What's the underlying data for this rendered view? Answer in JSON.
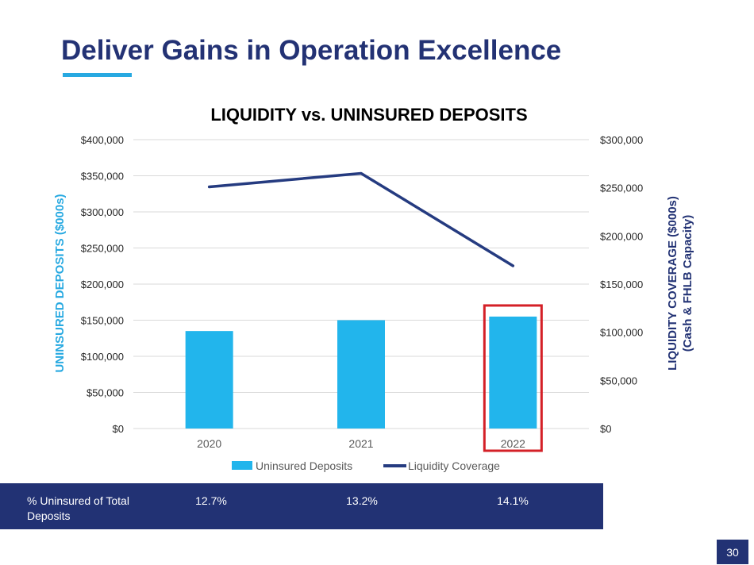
{
  "slide": {
    "title": "Deliver Gains in Operation Excellence",
    "page_number": "30"
  },
  "colors": {
    "title": "#233274",
    "accent": "#27a9e1",
    "bar": "#22b5ec",
    "line": "#253b80",
    "highlight": "#d42027",
    "band": "#223274"
  },
  "chart_data": {
    "type": "bar+line",
    "title": "LIQUIDITY vs. UNINSURED DEPOSITS",
    "categories": [
      "2020",
      "2021",
      "2022"
    ],
    "series": [
      {
        "name": "Uninsured Deposits",
        "type": "bar",
        "axis": "left",
        "values": [
          135000,
          150000,
          155000
        ]
      },
      {
        "name": "Liquidity Coverage",
        "type": "line",
        "axis": "right",
        "values": [
          251000,
          265000,
          169000
        ]
      }
    ],
    "y_left": {
      "label": "UNINSURED DEPOSITS ($000s)",
      "ylim": [
        0,
        400000
      ],
      "ticks": [
        "$0",
        "$50,000",
        "$100,000",
        "$150,000",
        "$200,000",
        "$250,000",
        "$300,000",
        "$350,000",
        "$400,000"
      ]
    },
    "y_right": {
      "label_line1": "LIQUIDITY COVERAGE ($000s)",
      "label_line2": "(Cash & FHLB Capacity)",
      "ylim": [
        0,
        300000
      ],
      "ticks": [
        "$0",
        "$50,000",
        "$100,000",
        "$150,000",
        "$200,000",
        "$250,000",
        "$300,000"
      ]
    },
    "highlighted_category": "2022",
    "grid": true,
    "legend_position": "bottom-center"
  },
  "table": {
    "label": "% Uninsured of Total Deposits",
    "values": [
      "12.7%",
      "13.2%",
      "14.1%"
    ]
  }
}
